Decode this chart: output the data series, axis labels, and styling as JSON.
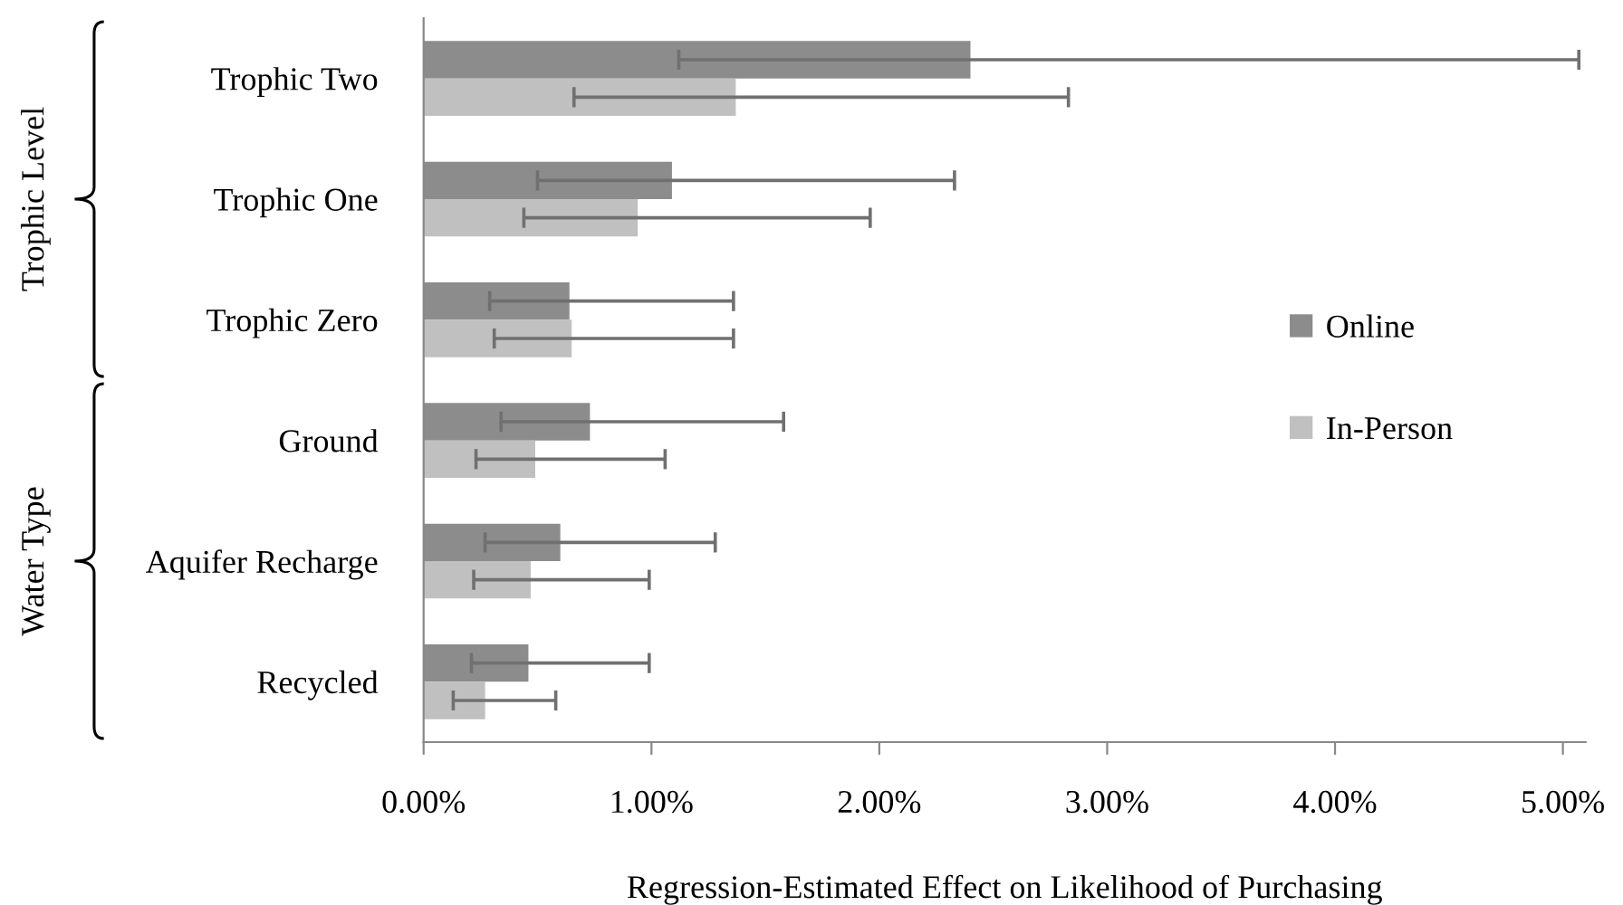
{
  "chart_data": {
    "type": "bar",
    "orientation": "horizontal",
    "xlabel": "Regression-Estimated Effect on Likelihood of Purchasing",
    "categories": [
      "Trophic Two",
      "Trophic One",
      "Trophic Zero",
      "Ground",
      "Aquifer Recharge",
      "Recycled"
    ],
    "series": [
      {
        "name": "Online",
        "color": "#8c8c8c",
        "values": [
          2.4,
          1.09,
          0.64,
          0.73,
          0.6,
          0.46
        ],
        "errors": [
          [
            1.12,
            5.07
          ],
          [
            0.5,
            2.33
          ],
          [
            0.29,
            1.36
          ],
          [
            0.34,
            1.58
          ],
          [
            0.27,
            1.28
          ],
          [
            0.21,
            0.99
          ]
        ]
      },
      {
        "name": "In-Person",
        "color": "#c0c0c0",
        "values": [
          1.37,
          0.94,
          0.65,
          0.49,
          0.47,
          0.27
        ],
        "errors": [
          [
            0.66,
            2.83
          ],
          [
            0.44,
            1.96
          ],
          [
            0.31,
            1.36
          ],
          [
            0.23,
            1.06
          ],
          [
            0.22,
            0.99
          ],
          [
            0.13,
            0.58
          ]
        ]
      }
    ],
    "xlim": [
      0,
      5.1
    ],
    "xticks": [
      {
        "value": 0,
        "label": "0.00%"
      },
      {
        "value": 1,
        "label": "1.00%"
      },
      {
        "value": 2,
        "label": "2.00%"
      },
      {
        "value": 3,
        "label": "3.00%"
      },
      {
        "value": 4,
        "label": "4.00%"
      },
      {
        "value": 5,
        "label": "5.00%"
      }
    ],
    "annotations": [
      "Trophic Level",
      "Water Type"
    ],
    "legend": "right",
    "grid": false
  }
}
